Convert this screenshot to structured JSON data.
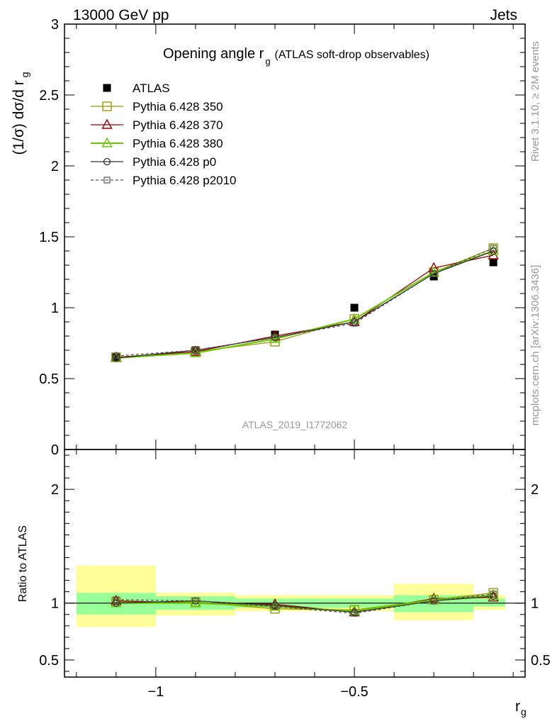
{
  "header": {
    "left": "13000 GeV pp",
    "right": "Jets"
  },
  "side_labels": {
    "rivet": "Rivet 3.1.10, ≥ 2M events",
    "mcplots": "mcplots.cern.ch [arXiv:1306.3436]"
  },
  "watermark": "ATLAS_2019_I1772062",
  "colors": {
    "data": "#000000",
    "p350": "#999900",
    "p370": "#990000",
    "p380": "#66cc00",
    "p0": "#333333",
    "p2010": "#555555",
    "band_outer": "#ffff99",
    "band_inner": "#99ff99"
  },
  "chart_data": [
    {
      "type": "line",
      "panel": "main",
      "title": "Opening angle r",
      "title_sub": "g",
      "title_suffix": "(ATLAS soft-drop observables)",
      "xlabel": "r",
      "xlabel_sub": "g",
      "ylabel": "(1/σ) dσ/d r",
      "ylabel_sub": "g",
      "xlim": [
        -1.23,
        -0.07
      ],
      "ylim": [
        0,
        3
      ],
      "yticks": [
        0.5,
        1,
        1.5,
        2,
        2.5,
        3
      ],
      "ytick_labels": [
        "0.5",
        "1",
        "1.5",
        "2",
        "2.5",
        "3"
      ],
      "x": [
        -1.1,
        -0.9,
        -0.7,
        -0.5,
        -0.3,
        -0.15
      ],
      "series": [
        {
          "name": "ATLAS",
          "key": "data",
          "marker": "filled-square",
          "values": [
            0.65,
            0.7,
            0.81,
            1.0,
            1.22,
            1.32
          ]
        },
        {
          "name": "Pythia 6.428 350",
          "key": "p350",
          "marker": "open-square",
          "values": [
            0.65,
            0.69,
            0.76,
            0.92,
            1.25,
            1.42
          ]
        },
        {
          "name": "Pythia 6.428 370",
          "key": "p370",
          "marker": "open-triangle",
          "values": [
            0.65,
            0.69,
            0.8,
            0.9,
            1.28,
            1.37
          ]
        },
        {
          "name": "Pythia 6.428 380",
          "key": "p380",
          "marker": "open-triangle",
          "values": [
            0.645,
            0.68,
            0.78,
            0.92,
            1.25,
            1.4
          ]
        },
        {
          "name": "Pythia 6.428 p0",
          "key": "p0",
          "marker": "open-circle",
          "values": [
            0.645,
            0.7,
            0.79,
            0.9,
            1.24,
            1.4
          ]
        },
        {
          "name": "Pythia 6.428 p2010",
          "key": "p2010",
          "marker": "small-square-dashed",
          "values": [
            0.66,
            0.7,
            0.79,
            0.89,
            1.24,
            1.42
          ]
        }
      ]
    },
    {
      "type": "line",
      "panel": "ratio",
      "ylabel": "Ratio to ATLAS",
      "xlim": [
        -1.23,
        -0.07
      ],
      "ylim": [
        0.35,
        2.35
      ],
      "yticks": [
        0.5,
        1,
        2
      ],
      "ytick_labels": [
        "0.5",
        "1",
        "2"
      ],
      "xticks": [
        -1,
        -0.5
      ],
      "xtick_labels": [
        "−1",
        "−0.5"
      ],
      "x": [
        -1.1,
        -0.9,
        -0.7,
        -0.5,
        -0.3,
        -0.15
      ],
      "bins": [
        [
          -1.2,
          -1.0
        ],
        [
          -1.0,
          -0.8
        ],
        [
          -0.8,
          -0.6
        ],
        [
          -0.6,
          -0.4
        ],
        [
          -0.4,
          -0.2
        ],
        [
          -0.2,
          -0.12
        ]
      ],
      "band_outer": [
        [
          0.79,
          1.33
        ],
        [
          0.89,
          1.09
        ],
        [
          0.93,
          1.07
        ],
        [
          0.93,
          1.07
        ],
        [
          0.85,
          1.17
        ],
        [
          0.94,
          1.07
        ]
      ],
      "band_inner": [
        [
          0.9,
          1.09
        ],
        [
          0.94,
          1.06
        ],
        [
          0.96,
          1.04
        ],
        [
          0.96,
          1.04
        ],
        [
          0.92,
          1.07
        ],
        [
          0.97,
          1.04
        ]
      ],
      "series": [
        {
          "name": "Pythia 6.428 350",
          "key": "p350",
          "marker": "open-square",
          "values": [
            1.01,
            1.01,
            0.95,
            0.94,
            1.03,
            1.09
          ]
        },
        {
          "name": "Pythia 6.428 370",
          "key": "p370",
          "marker": "open-triangle",
          "values": [
            1.02,
            1.0,
            0.99,
            0.92,
            1.04,
            1.05
          ]
        },
        {
          "name": "Pythia 6.428 380",
          "key": "p380",
          "marker": "open-triangle",
          "values": [
            1.0,
            1.0,
            0.97,
            0.93,
            1.03,
            1.07
          ]
        },
        {
          "name": "Pythia 6.428 p0",
          "key": "p0",
          "marker": "open-circle",
          "values": [
            1.0,
            1.02,
            0.98,
            0.92,
            1.02,
            1.06
          ]
        },
        {
          "name": "Pythia 6.428 p2010",
          "key": "p2010",
          "marker": "small-square-dashed",
          "values": [
            1.03,
            1.02,
            0.97,
            0.91,
            1.02,
            1.08
          ]
        }
      ]
    }
  ]
}
